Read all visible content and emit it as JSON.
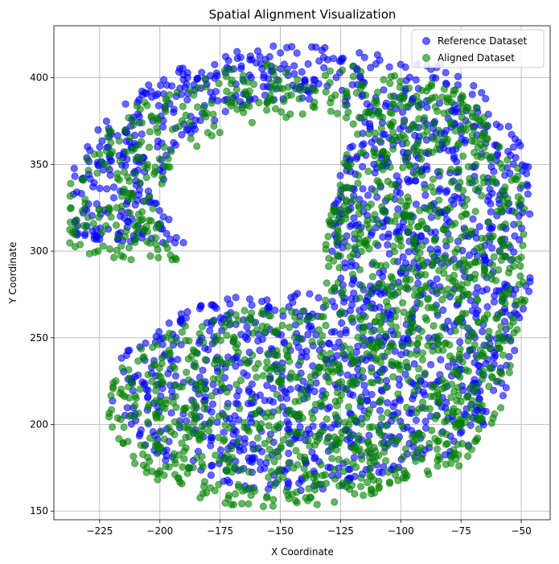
{
  "chart_data": {
    "type": "scatter",
    "title": "Spatial Alignment Visualization",
    "xlabel": "X Coordinate",
    "ylabel": "Y Coordinate",
    "xlim": [
      -244,
      -38
    ],
    "ylim": [
      145,
      430
    ],
    "xticks": [
      -225,
      -200,
      -175,
      -150,
      -125,
      -100,
      -75,
      -50
    ],
    "yticks": [
      150,
      200,
      250,
      300,
      350,
      400
    ],
    "grid": true,
    "legend_position": "top-right",
    "series": [
      {
        "name": "Reference Dataset",
        "color": "#0000ff",
        "point_count": 1700,
        "description_of_shape": "points fill a thick C-shaped band",
        "x": [
          -230,
          -222,
          -215,
          -208,
          -198,
          -190,
          -182,
          -175,
          -165,
          -155,
          -145,
          -135,
          -128,
          -120,
          -110,
          -100,
          -90,
          -80,
          -70,
          -62,
          -55,
          -50,
          -48,
          -52,
          -58,
          -65,
          -75,
          -85,
          -95,
          -105,
          -115,
          -125,
          -135,
          -145,
          -155,
          -165,
          -175,
          -185,
          -195,
          -205,
          -212,
          -205,
          -195,
          -185,
          -175,
          -165,
          -150,
          -140,
          -128
        ],
        "y": [
          315,
          335,
          355,
          372,
          388,
          398,
          405,
          410,
          412,
          412,
          410,
          408,
          402,
          398,
          392,
          385,
          378,
          365,
          352,
          338,
          320,
          305,
          290,
          272,
          258,
          245,
          232,
          215,
          200,
          188,
          175,
          165,
          160,
          158,
          160,
          165,
          172,
          182,
          195,
          212,
          230,
          245,
          258,
          268,
          274,
          276,
          272,
          265,
          270
        ]
      },
      {
        "name": "Aligned Dataset",
        "color": "#008000",
        "point_count": 1700,
        "x": [
          -236,
          -228,
          -218,
          -210,
          -200,
          -190,
          -180,
          -170,
          -160,
          -150,
          -140,
          -130,
          -120,
          -110,
          -100,
          -90,
          -80,
          -70,
          -62,
          -55,
          -48,
          -50,
          -55,
          -60,
          -68,
          -78,
          -88,
          -98,
          -108,
          -118,
          -128,
          -138,
          -148,
          -158,
          -168,
          -178,
          -188,
          -198,
          -208,
          -214,
          -208,
          -198,
          -188,
          -178,
          -168,
          -158,
          -148
        ],
        "y": [
          316,
          325,
          340,
          350,
          362,
          370,
          378,
          385,
          392,
          395,
          395,
          393,
          388,
          382,
          378,
          372,
          365,
          358,
          348,
          335,
          320,
          300,
          282,
          265,
          250,
          238,
          222,
          205,
          190,
          178,
          168,
          162,
          162,
          165,
          170,
          178,
          188,
          200,
          215,
          232,
          248,
          260,
          268,
          273,
          274,
          270,
          262
        ]
      }
    ]
  }
}
